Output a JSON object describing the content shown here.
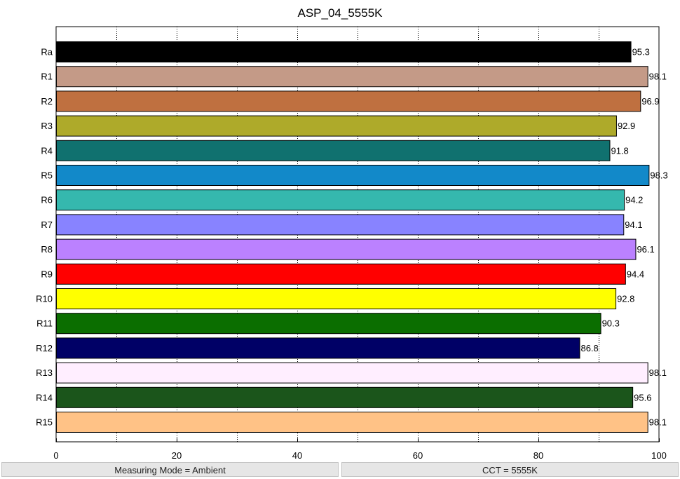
{
  "chart_data": {
    "type": "bar",
    "orientation": "horizontal",
    "title": "ASP_04_5555K",
    "categories": [
      "Ra",
      "R1",
      "R2",
      "R3",
      "R4",
      "R5",
      "R6",
      "R7",
      "R8",
      "R9",
      "R10",
      "R11",
      "R12",
      "R13",
      "R14",
      "R15"
    ],
    "values": [
      95.3,
      98.1,
      96.9,
      92.9,
      91.8,
      98.3,
      94.2,
      94.1,
      96.1,
      94.4,
      92.8,
      90.3,
      86.8,
      98.1,
      95.6,
      98.1
    ],
    "value_labels": [
      "95.3",
      "98.1",
      "96.9",
      "92.9",
      "91.8",
      "98.3",
      "94.2",
      "94.1",
      "96.1",
      "94.4",
      "92.8",
      "90.3",
      "86.8",
      "98.1",
      "95.6",
      "98.1"
    ],
    "colors": [
      "#000000",
      "#c49a87",
      "#bf7040",
      "#aeaa2a",
      "#10716f",
      "#1289c9",
      "#35b8ae",
      "#8883ff",
      "#bb81ff",
      "#ff0000",
      "#ffff00",
      "#0b6e00",
      "#000066",
      "#ffeeff",
      "#1b551b",
      "#ffc286"
    ],
    "xlim": [
      0,
      100
    ],
    "xticks": [
      0,
      20,
      40,
      60,
      80,
      100
    ],
    "xtick_labels": [
      "0",
      "20",
      "40",
      "60",
      "80",
      "100"
    ],
    "grid_x": [
      10,
      20,
      30,
      40,
      50,
      60,
      70,
      80,
      90
    ],
    "grid": true,
    "xlabel": "",
    "ylabel": ""
  },
  "status": {
    "measuring_mode": "Measuring Mode = Ambient",
    "cct": "CCT = 5555K"
  }
}
